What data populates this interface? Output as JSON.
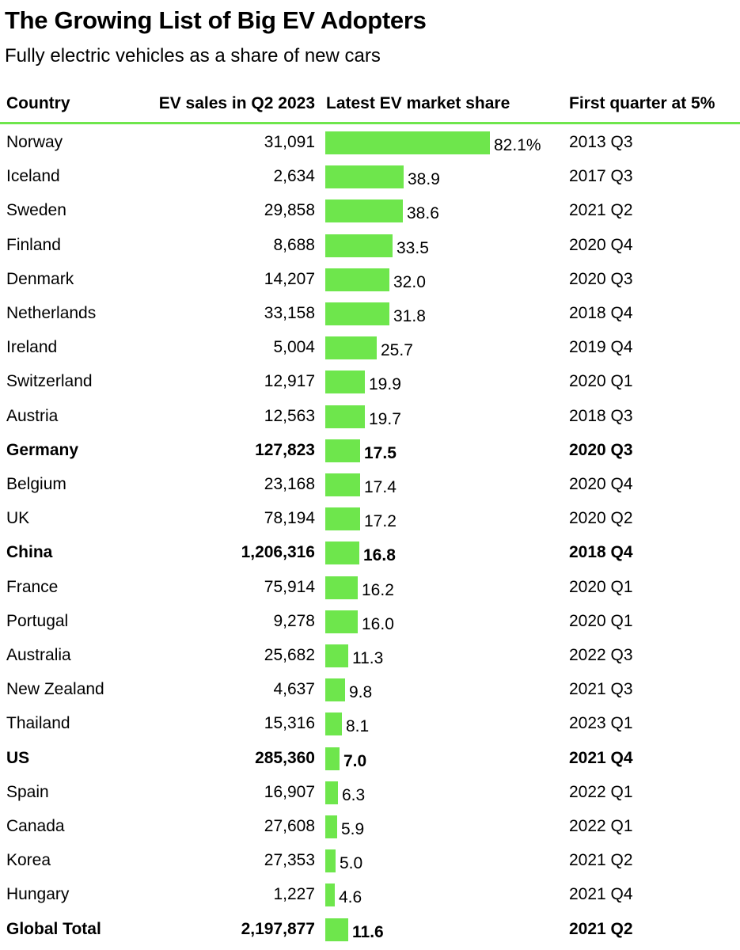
{
  "title": "The Growing List of Big EV Adopters",
  "subtitle": "Fully electric vehicles as a share of new cars",
  "headers": {
    "country": "Country",
    "sales": "EV sales in Q2 2023",
    "share": "Latest EV market share",
    "first": "First quarter at 5%"
  },
  "colors": {
    "bar": "#6ee64c",
    "rule": "#6ee64c",
    "text": "#000000"
  },
  "chart_data": {
    "type": "table",
    "share_unit": "%",
    "rows": [
      {
        "country": "Norway",
        "sales": "31,091",
        "share": 82.1,
        "share_label": "82.1%",
        "first": "2013 Q3",
        "bold": false
      },
      {
        "country": "Iceland",
        "sales": "2,634",
        "share": 38.9,
        "share_label": "38.9",
        "first": "2017 Q3",
        "bold": false
      },
      {
        "country": "Sweden",
        "sales": "29,858",
        "share": 38.6,
        "share_label": "38.6",
        "first": "2021 Q2",
        "bold": false
      },
      {
        "country": "Finland",
        "sales": "8,688",
        "share": 33.5,
        "share_label": "33.5",
        "first": "2020 Q4",
        "bold": false
      },
      {
        "country": "Denmark",
        "sales": "14,207",
        "share": 32.0,
        "share_label": "32.0",
        "first": "2020 Q3",
        "bold": false
      },
      {
        "country": "Netherlands",
        "sales": "33,158",
        "share": 31.8,
        "share_label": "31.8",
        "first": "2018 Q4",
        "bold": false
      },
      {
        "country": "Ireland",
        "sales": "5,004",
        "share": 25.7,
        "share_label": "25.7",
        "first": "2019 Q4",
        "bold": false
      },
      {
        "country": "Switzerland",
        "sales": "12,917",
        "share": 19.9,
        "share_label": "19.9",
        "first": "2020 Q1",
        "bold": false
      },
      {
        "country": "Austria",
        "sales": "12,563",
        "share": 19.7,
        "share_label": "19.7",
        "first": "2018 Q3",
        "bold": false
      },
      {
        "country": "Germany",
        "sales": "127,823",
        "share": 17.5,
        "share_label": "17.5",
        "first": "2020 Q3",
        "bold": true
      },
      {
        "country": "Belgium",
        "sales": "23,168",
        "share": 17.4,
        "share_label": "17.4",
        "first": "2020 Q4",
        "bold": false
      },
      {
        "country": "UK",
        "sales": "78,194",
        "share": 17.2,
        "share_label": "17.2",
        "first": "2020 Q2",
        "bold": false
      },
      {
        "country": "China",
        "sales": "1,206,316",
        "share": 16.8,
        "share_label": "16.8",
        "first": "2018 Q4",
        "bold": true
      },
      {
        "country": "France",
        "sales": "75,914",
        "share": 16.2,
        "share_label": "16.2",
        "first": "2020 Q1",
        "bold": false
      },
      {
        "country": "Portugal",
        "sales": "9,278",
        "share": 16.0,
        "share_label": "16.0",
        "first": "2020 Q1",
        "bold": false
      },
      {
        "country": "Australia",
        "sales": "25,682",
        "share": 11.3,
        "share_label": "11.3",
        "first": "2022 Q3",
        "bold": false
      },
      {
        "country": "New Zealand",
        "sales": "4,637",
        "share": 9.8,
        "share_label": "9.8",
        "first": "2021 Q3",
        "bold": false
      },
      {
        "country": "Thailand",
        "sales": "15,316",
        "share": 8.1,
        "share_label": "8.1",
        "first": "2023 Q1",
        "bold": false
      },
      {
        "country": "US",
        "sales": "285,360",
        "share": 7.0,
        "share_label": "7.0",
        "first": "2021 Q4",
        "bold": true
      },
      {
        "country": "Spain",
        "sales": "16,907",
        "share": 6.3,
        "share_label": "6.3",
        "first": "2022 Q1",
        "bold": false
      },
      {
        "country": "Canada",
        "sales": "27,608",
        "share": 5.9,
        "share_label": "5.9",
        "first": "2022 Q1",
        "bold": false
      },
      {
        "country": "Korea",
        "sales": "27,353",
        "share": 5.0,
        "share_label": "5.0",
        "first": "2021 Q2",
        "bold": false
      },
      {
        "country": "Hungary",
        "sales": "1,227",
        "share": 4.6,
        "share_label": "4.6",
        "first": "2021 Q4",
        "bold": false
      },
      {
        "country": "Global Total",
        "sales": "2,197,877",
        "share": 11.6,
        "share_label": "11.6",
        "first": "2021 Q2",
        "bold": true
      }
    ]
  }
}
